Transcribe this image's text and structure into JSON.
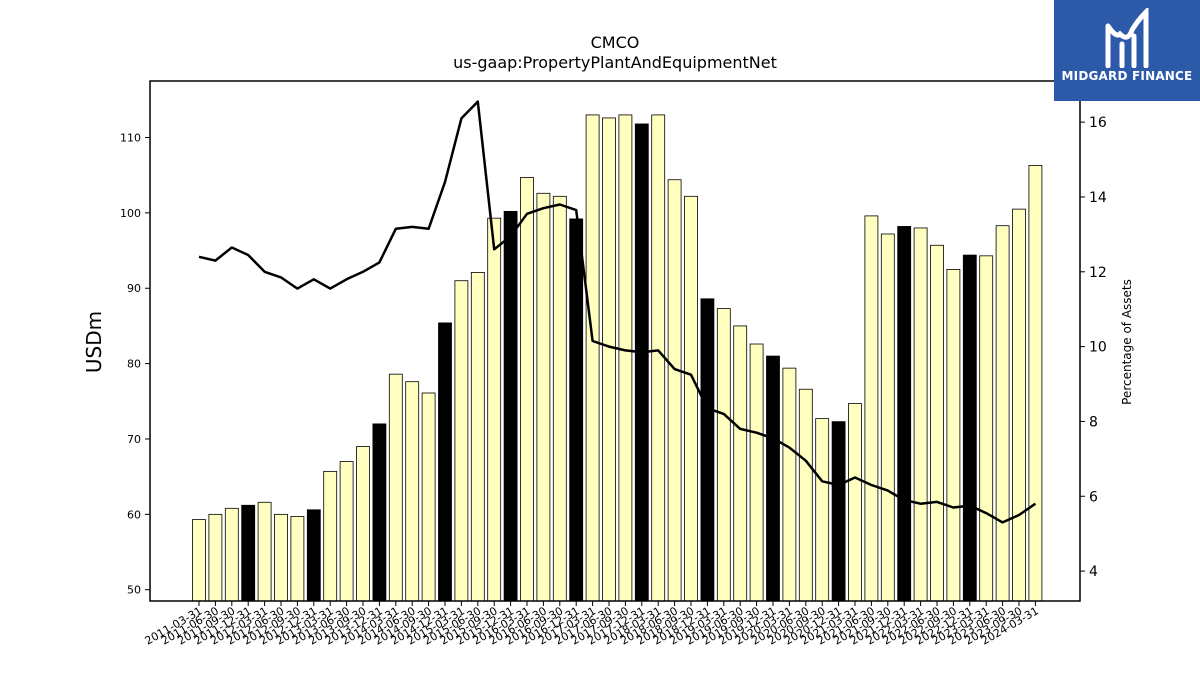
{
  "chart_data": {
    "type": "bar",
    "title": "CMCO",
    "subtitle": "us-gaap:PropertyPlantAndEquipmentNet",
    "ylabel": "USDm",
    "y2label": "Percentage of Assets",
    "ylim": [
      48.5,
      117.5
    ],
    "y2lim": [
      3.2,
      17.1
    ],
    "yticks": [
      50,
      60,
      70,
      80,
      90,
      100,
      110
    ],
    "y2ticks": [
      4,
      6,
      8,
      10,
      12,
      14,
      16
    ],
    "categories": [
      "2011-03-31",
      "2011-06-30",
      "2011-09-30",
      "2011-12-31",
      "2012-03-31",
      "2012-06-30",
      "2012-09-30",
      "2012-12-31",
      "2013-03-31",
      "2013-06-30",
      "2013-09-30",
      "2013-12-31",
      "2014-03-31",
      "2014-06-30",
      "2014-09-30",
      "2014-12-31",
      "2015-03-31",
      "2015-06-30",
      "2015-09-30",
      "2015-12-31",
      "2016-03-31",
      "2016-06-30",
      "2016-09-30",
      "2016-12-31",
      "2017-03-31",
      "2017-06-30",
      "2017-09-30",
      "2017-12-31",
      "2018-03-31",
      "2018-06-30",
      "2018-09-30",
      "2018-12-31",
      "2019-03-31",
      "2019-06-30",
      "2019-09-30",
      "2019-12-31",
      "2020-03-31",
      "2020-06-30",
      "2020-09-30",
      "2020-12-31",
      "2021-03-31",
      "2021-06-30",
      "2021-09-30",
      "2021-12-31",
      "2022-03-31",
      "2022-06-30",
      "2022-09-30",
      "2022-12-31",
      "2023-03-31",
      "2023-06-30",
      "2023-09-30",
      "2024-03-31"
    ],
    "series": [
      {
        "kind": "bar",
        "axis": "left",
        "values": [
          59.3,
          60.0,
          60.8,
          61.2,
          61.6,
          60.0,
          59.7,
          60.6,
          65.7,
          67.0,
          69.0,
          72.0,
          78.6,
          77.6,
          76.1,
          85.4,
          91.0,
          92.1,
          99.3,
          100.2,
          104.7,
          102.6,
          102.2,
          99.2,
          113.0,
          112.6,
          113.0,
          111.8,
          113.0,
          104.4,
          102.2,
          88.6,
          87.3,
          85.0,
          82.6,
          81.0,
          79.4,
          76.6,
          72.7,
          72.3,
          74.7,
          99.6,
          97.2,
          98.2,
          98.0,
          95.7,
          92.5,
          94.4,
          94.3,
          98.3,
          100.5,
          106.3
        ],
        "fill_colors": [
          "#ffffc0",
          "#ffffc0",
          "#ffffc0",
          "#000000",
          "#ffffc0",
          "#ffffc0",
          "#ffffc0",
          "#000000",
          "#ffffc0",
          "#ffffc0",
          "#ffffc0",
          "#000000",
          "#ffffc0",
          "#ffffc0",
          "#ffffc0",
          "#000000",
          "#ffffc0",
          "#ffffc0",
          "#ffffc0",
          "#000000",
          "#ffffc0",
          "#ffffc0",
          "#ffffc0",
          "#000000",
          "#ffffc0",
          "#ffffc0",
          "#ffffc0",
          "#000000",
          "#ffffc0",
          "#ffffc0",
          "#ffffc0",
          "#000000",
          "#ffffc0",
          "#ffffc0",
          "#ffffc0",
          "#000000",
          "#ffffc0",
          "#ffffc0",
          "#ffffc0",
          "#000000",
          "#ffffc0",
          "#ffffc0",
          "#ffffc0",
          "#000000",
          "#ffffc0",
          "#ffffc0",
          "#ffffc0",
          "#000000",
          "#ffffc0",
          "#ffffc0",
          "#ffffc0",
          "#ffffc0"
        ]
      },
      {
        "kind": "line",
        "axis": "right",
        "color": "#000000",
        "values": [
          12.4,
          12.3,
          12.65,
          12.45,
          12.0,
          11.85,
          11.55,
          11.8,
          11.55,
          11.8,
          12.0,
          12.25,
          13.15,
          13.2,
          13.15,
          14.4,
          16.1,
          16.55,
          12.6,
          12.95,
          13.55,
          13.7,
          13.8,
          13.65,
          10.15,
          10.0,
          9.9,
          9.85,
          9.9,
          9.4,
          9.25,
          8.35,
          8.2,
          7.8,
          7.7,
          7.55,
          7.3,
          6.95,
          6.4,
          6.3,
          6.5,
          6.3,
          6.15,
          5.9,
          5.8,
          5.85,
          5.7,
          5.75,
          5.55,
          5.3,
          5.5,
          5.8
        ]
      }
    ],
    "grid": false,
    "legend": "none",
    "colors": {
      "bar_light": "#ffffc0",
      "bar_dark": "#000000",
      "line": "#000000",
      "logo_bg": "#2c5aa8"
    }
  },
  "logo": {
    "text": "MIDGARD FINANCE",
    "icon": "midgard-logo-icon"
  }
}
